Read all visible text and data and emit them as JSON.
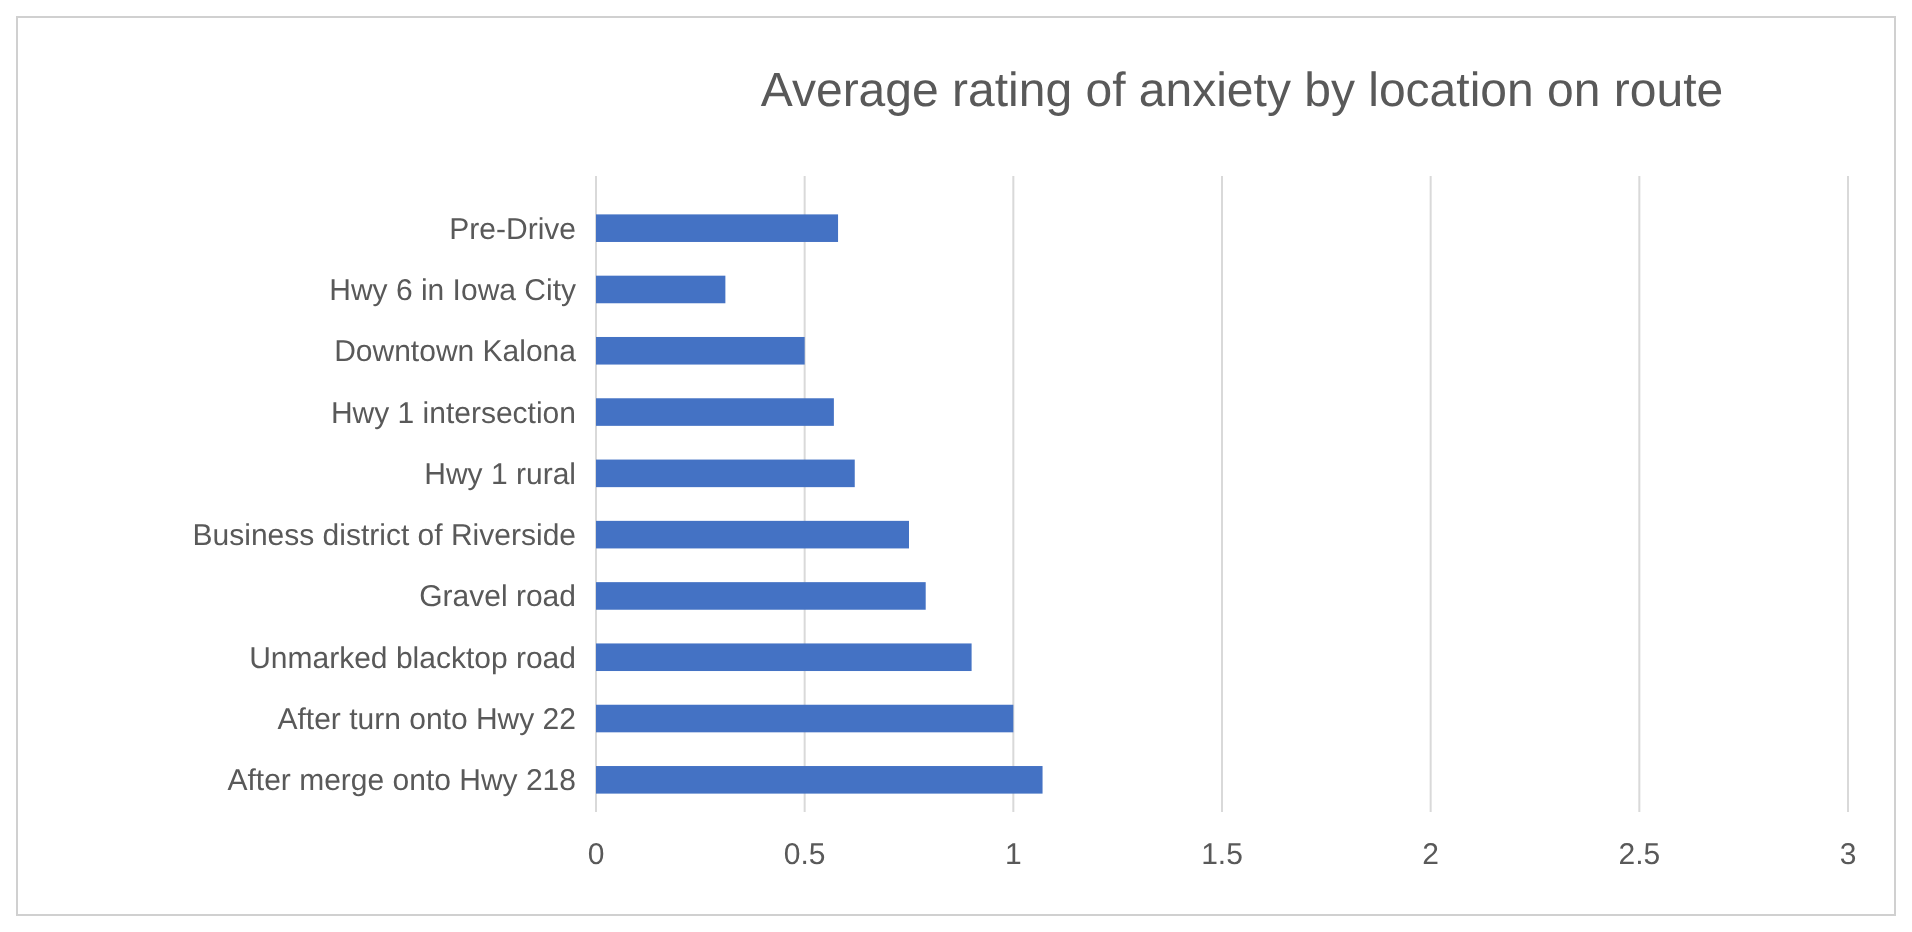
{
  "chart_data": {
    "type": "bar",
    "orientation": "horizontal",
    "title": "Average rating of anxiety by location on route",
    "categories": [
      "Pre-Drive",
      "Hwy 6 in Iowa City",
      "Downtown Kalona",
      "Hwy 1 intersection",
      "Hwy 1 rural",
      "Business district of Riverside",
      "Gravel road",
      "Unmarked blacktop road",
      "After turn onto Hwy 22",
      "After merge onto Hwy 218"
    ],
    "values": [
      0.58,
      0.31,
      0.5,
      0.57,
      0.62,
      0.75,
      0.79,
      0.9,
      1.0,
      1.07
    ],
    "color": "#4472c4",
    "xlim": [
      0,
      3
    ],
    "xticks": [
      0,
      0.5,
      1,
      1.5,
      2,
      2.5,
      3
    ],
    "grid": "x"
  }
}
